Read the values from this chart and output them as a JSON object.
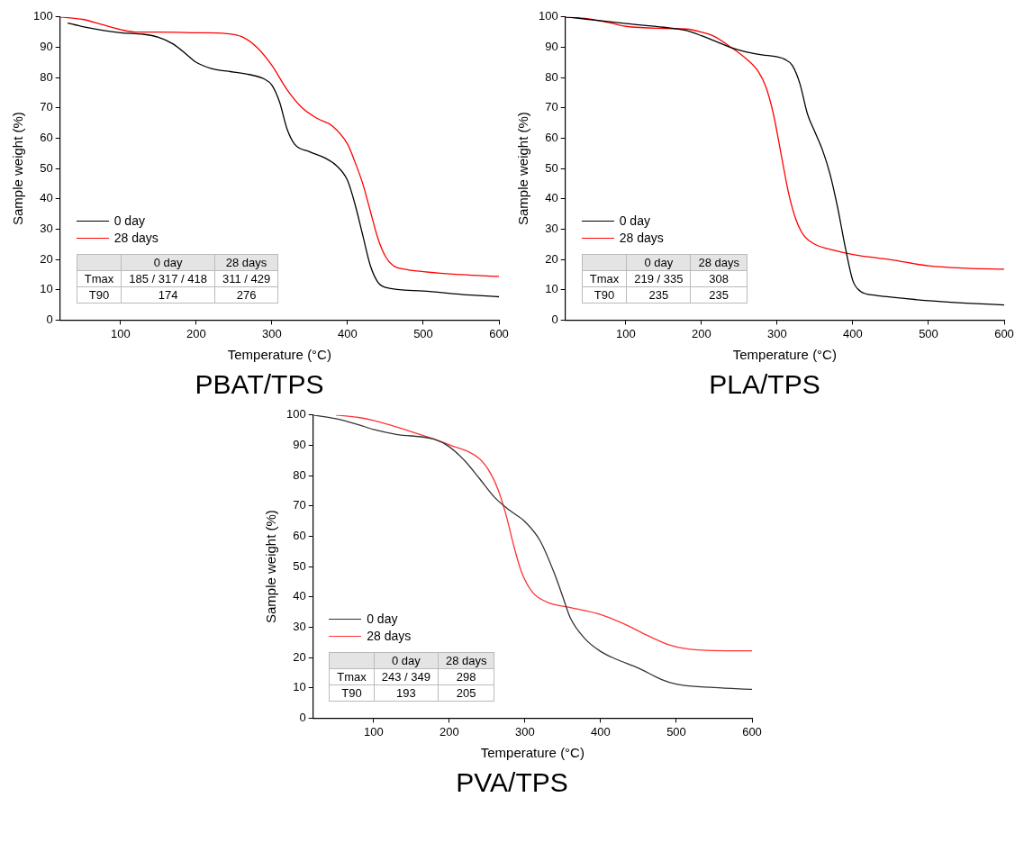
{
  "chart_data": [
    {
      "type": "line",
      "title": "PBAT/TPS",
      "xlabel": "Temperature (°C)",
      "ylabel": "Sample weight (%)",
      "xlim": [
        20,
        600
      ],
      "ylim": [
        0,
        100
      ],
      "xticks": [
        100,
        200,
        300,
        400,
        500,
        600
      ],
      "yticks": [
        0,
        10,
        20,
        30,
        40,
        50,
        60,
        70,
        80,
        90,
        100
      ],
      "legend": "bottom left",
      "marker": "none",
      "annotations": [
        "0 day",
        "28 days",
        "Tmax",
        "185 / 317 / 418",
        "311 / 429",
        "T90",
        "174",
        "276"
      ],
      "series": [
        {
          "name": "0 day",
          "color": "#000000",
          "x": [
            30,
            50,
            100,
            130,
            150,
            170,
            190,
            200,
            220,
            250,
            270,
            290,
            300,
            310,
            320,
            330,
            350,
            370,
            385,
            400,
            410,
            420,
            430,
            440,
            450,
            500,
            550,
            600
          ],
          "values": [
            98,
            96.8,
            94.8,
            94.3,
            93.3,
            91,
            87,
            85,
            83,
            81.8,
            81,
            79.5,
            77.5,
            72,
            63,
            58,
            55.5,
            53.5,
            51,
            46,
            38,
            28,
            18,
            12.5,
            10.8,
            9.6,
            8.5,
            7.7
          ]
        },
        {
          "name": "28 days",
          "color": "#ff0000",
          "x": [
            20,
            50,
            75,
            100,
            120,
            150,
            200,
            240,
            260,
            280,
            300,
            320,
            340,
            360,
            380,
            400,
            410,
            420,
            430,
            440,
            450,
            460,
            480,
            500,
            550,
            600
          ],
          "values": [
            100,
            99.2,
            97.5,
            95.8,
            95,
            95,
            94.8,
            94.5,
            93.5,
            90,
            84,
            76,
            70,
            66.5,
            64,
            58,
            52,
            45,
            36,
            27,
            21,
            18,
            16.6,
            16,
            15,
            14.4
          ]
        }
      ]
    },
    {
      "type": "line",
      "title": "PLA/TPS",
      "xlabel": "Temperature (°C)",
      "ylabel": "Sample weight (%)",
      "xlim": [
        20,
        600
      ],
      "ylim": [
        0,
        100
      ],
      "xticks": [
        100,
        200,
        300,
        400,
        500,
        600
      ],
      "yticks": [
        0,
        10,
        20,
        30,
        40,
        50,
        60,
        70,
        80,
        90,
        100
      ],
      "legend": "bottom left",
      "marker": "none",
      "annotations": [
        "0 day",
        "28 days",
        "Tmax",
        "219 / 335",
        "308",
        "T90",
        "235",
        "235"
      ],
      "series": [
        {
          "name": "0 day",
          "color": "#000000",
          "x": [
            20,
            50,
            100,
            150,
            180,
            200,
            220,
            240,
            260,
            280,
            300,
            310,
            320,
            330,
            340,
            350,
            360,
            370,
            380,
            390,
            400,
            410,
            430,
            450,
            500,
            550,
            600
          ],
          "values": [
            100,
            99.2,
            97.8,
            96.6,
            95.5,
            93.8,
            91.8,
            89.8,
            88.4,
            87.5,
            86.8,
            86,
            84,
            78,
            68,
            62,
            56,
            48,
            37,
            24,
            13,
            9.5,
            8.2,
            7.6,
            6.4,
            5.6,
            5
          ]
        },
        {
          "name": "28 days",
          "color": "#ff0000",
          "x": [
            20,
            50,
            80,
            100,
            150,
            180,
            200,
            215,
            240,
            260,
            275,
            285,
            295,
            305,
            315,
            325,
            335,
            350,
            375,
            400,
            450,
            500,
            550,
            600
          ],
          "values": [
            100,
            99.4,
            98,
            96.9,
            96.2,
            96,
            95,
            93.8,
            89.8,
            86,
            82,
            77,
            68,
            55,
            42,
            33,
            28,
            25,
            23,
            21.6,
            19.9,
            17.9,
            17.1,
            16.8
          ]
        }
      ]
    },
    {
      "type": "line",
      "title": "PVA/TPS",
      "xlabel": "Temperature (°C)",
      "ylabel": "Sample weight (%)",
      "xlim": [
        20,
        600
      ],
      "ylim": [
        0,
        100
      ],
      "xticks": [
        100,
        200,
        300,
        400,
        500,
        600
      ],
      "yticks": [
        0,
        10,
        20,
        30,
        40,
        50,
        60,
        70,
        80,
        90,
        100
      ],
      "legend": "bottom left",
      "marker": "none",
      "annotations": [
        "0 day",
        "28 days",
        "Tmax",
        "243 / 349",
        "298",
        "T90",
        "193",
        "205"
      ],
      "series": [
        {
          "name": "0 day",
          "color": "#333333",
          "x": [
            20,
            50,
            80,
            100,
            130,
            180,
            200,
            220,
            240,
            260,
            280,
            300,
            320,
            340,
            350,
            360,
            380,
            400,
            420,
            450,
            480,
            500,
            550,
            600
          ],
          "values": [
            100,
            98.8,
            96.8,
            95.2,
            93.6,
            92,
            89.5,
            85,
            79,
            72.8,
            68.5,
            64.8,
            58.5,
            47,
            40,
            33,
            26,
            22,
            19.5,
            16.5,
            12.8,
            11.2,
            10.1,
            9.5
          ]
        },
        {
          "name": "28 days",
          "color": "#ff3333",
          "x": [
            50,
            80,
            100,
            150,
            200,
            240,
            255,
            265,
            275,
            285,
            295,
            310,
            330,
            360,
            400,
            430,
            460,
            490,
            510,
            550,
            600
          ],
          "values": [
            100,
            99.2,
            98.2,
            94.5,
            90.2,
            85.5,
            80.5,
            75,
            67,
            57,
            48.5,
            41.5,
            38.2,
            36.5,
            34.2,
            31.2,
            27.5,
            24.2,
            23,
            22.3,
            22.2
          ]
        }
      ]
    }
  ]
}
